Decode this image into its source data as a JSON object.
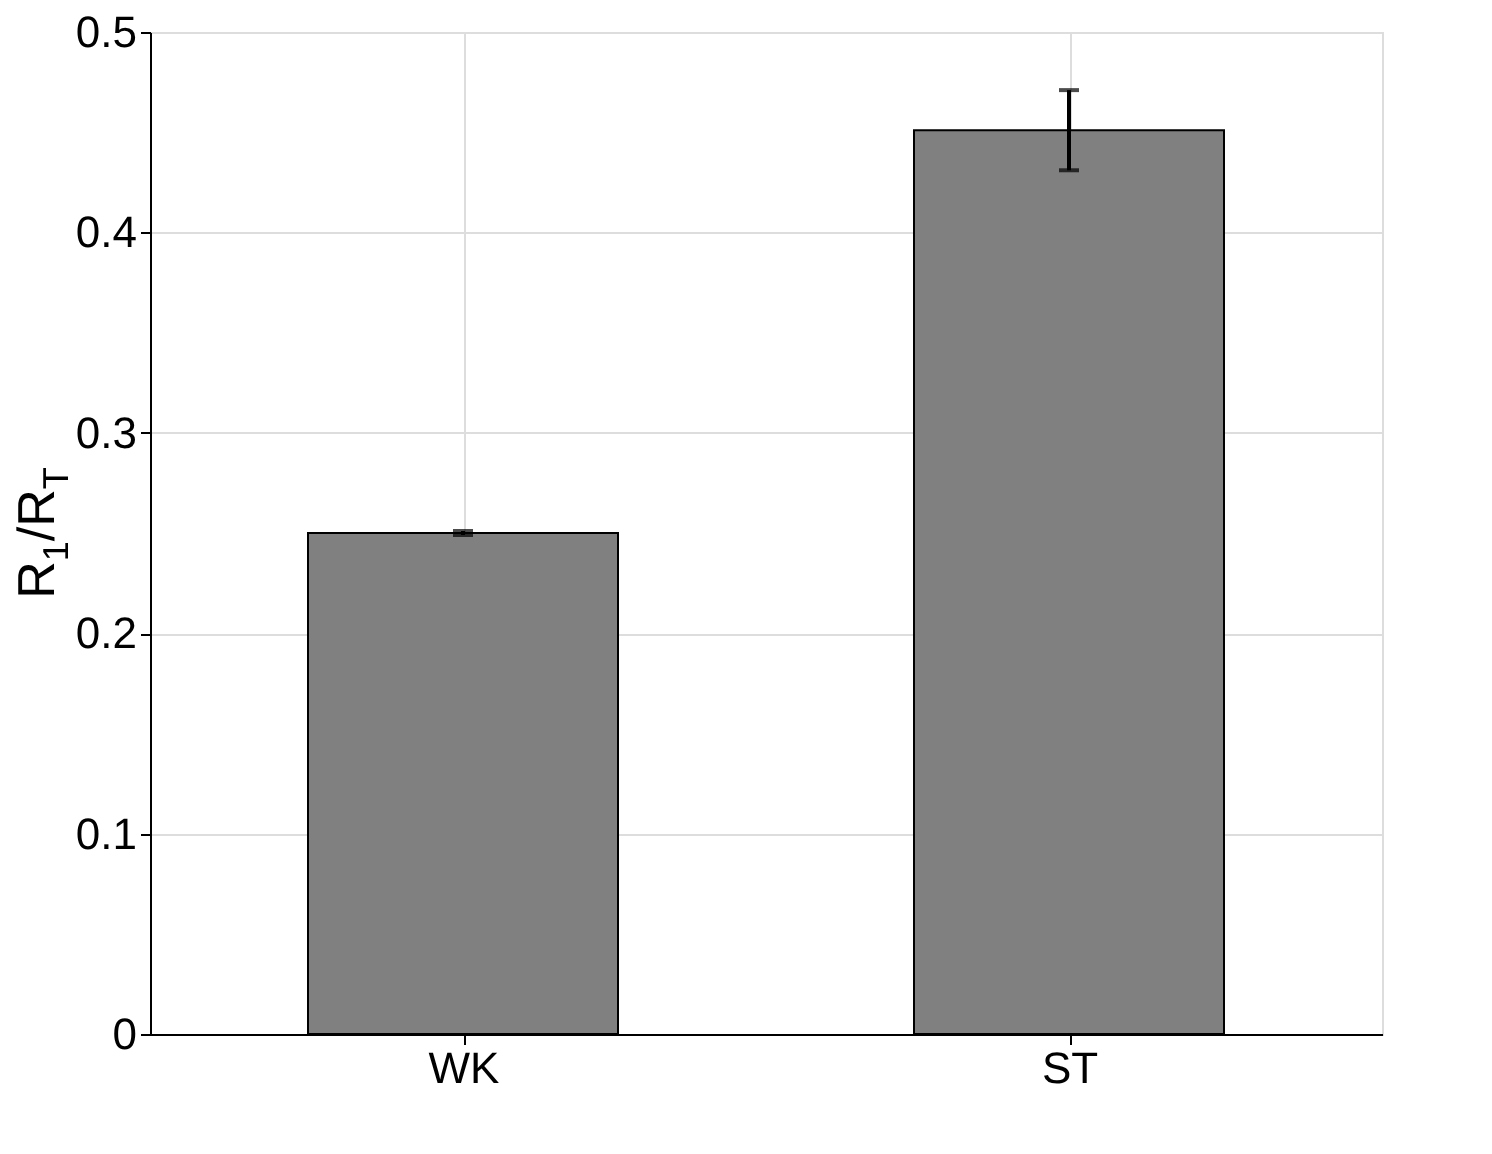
{
  "chart_data": {
    "type": "bar",
    "ylabel": "R$_{1}$/R$_{T}$",
    "categories": [
      "WK",
      "ST"
    ],
    "values": [
      0.25,
      0.451
    ],
    "errors": [
      0.001,
      [
        0.431,
        0.471
      ]
    ],
    "color": "#808080",
    "ylim": [
      0,
      0.5
    ],
    "yticks": [
      0,
      0.1,
      0.2,
      0.3,
      0.4,
      0.5
    ],
    "grid": true
  }
}
